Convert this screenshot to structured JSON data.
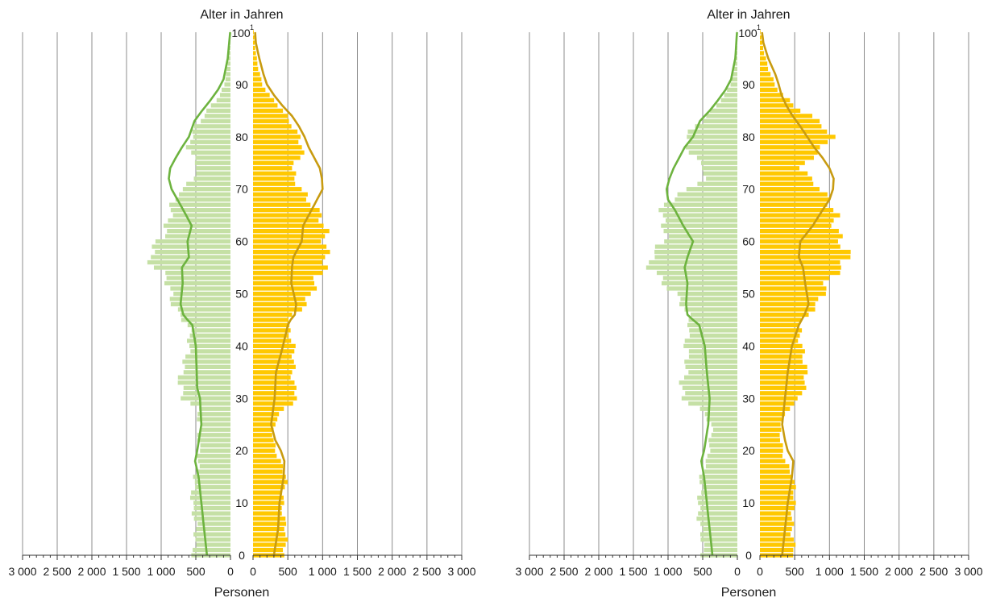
{
  "chart_data": [
    {
      "type": "population-pyramid",
      "title_top": "Alter in Jahren",
      "xlabel": "Personen",
      "y_ticks": [
        0,
        10,
        20,
        30,
        40,
        50,
        60,
        70,
        80,
        90,
        100
      ],
      "y_top_label": "100",
      "y_top_footnote": "1",
      "x_ticks_left": [
        "3 000",
        "2 500",
        "2 000",
        "1 500",
        "1 000",
        "500",
        "0"
      ],
      "x_ticks_right": [
        "0",
        "500",
        "1 000",
        "1 500",
        "2 000",
        "2 500",
        "3 000"
      ],
      "xlim": [
        0,
        3000
      ],
      "ylim": [
        0,
        100
      ],
      "colors": {
        "male_bar": "#c5e0a5",
        "female_bar": "#ffc800",
        "male_line": "#6db33f",
        "female_line": "#c89b10"
      },
      "male_bar_keys": [
        [
          0,
          520
        ],
        [
          5,
          520
        ],
        [
          10,
          540
        ],
        [
          15,
          520
        ],
        [
          18,
          480
        ],
        [
          20,
          450
        ],
        [
          25,
          440
        ],
        [
          28,
          500
        ],
        [
          30,
          700
        ],
        [
          33,
          720
        ],
        [
          36,
          660
        ],
        [
          40,
          620
        ],
        [
          44,
          600
        ],
        [
          46,
          720
        ],
        [
          48,
          800
        ],
        [
          50,
          880
        ],
        [
          53,
          960
        ],
        [
          55,
          1100
        ],
        [
          57,
          1150
        ],
        [
          59,
          1050
        ],
        [
          62,
          950
        ],
        [
          65,
          920
        ],
        [
          67,
          840
        ],
        [
          69,
          760
        ],
        [
          70,
          640
        ],
        [
          72,
          540
        ],
        [
          74,
          480
        ],
        [
          76,
          560
        ],
        [
          78,
          620
        ],
        [
          80,
          560
        ],
        [
          82,
          480
        ],
        [
          84,
          380
        ],
        [
          86,
          280
        ],
        [
          88,
          160
        ],
        [
          90,
          90
        ],
        [
          93,
          50
        ],
        [
          96,
          20
        ],
        [
          100,
          5
        ]
      ],
      "female_bar_keys": [
        [
          0,
          450
        ],
        [
          5,
          460
        ],
        [
          10,
          440
        ],
        [
          15,
          460
        ],
        [
          18,
          380
        ],
        [
          20,
          340
        ],
        [
          22,
          300
        ],
        [
          25,
          300
        ],
        [
          28,
          420
        ],
        [
          30,
          650
        ],
        [
          33,
          600
        ],
        [
          36,
          580
        ],
        [
          40,
          560
        ],
        [
          44,
          520
        ],
        [
          46,
          600
        ],
        [
          48,
          760
        ],
        [
          50,
          800
        ],
        [
          53,
          900
        ],
        [
          55,
          1050
        ],
        [
          57,
          1120
        ],
        [
          59,
          1050
        ],
        [
          62,
          1000
        ],
        [
          65,
          950
        ],
        [
          67,
          880
        ],
        [
          69,
          780
        ],
        [
          70,
          700
        ],
        [
          72,
          600
        ],
        [
          74,
          540
        ],
        [
          76,
          650
        ],
        [
          78,
          730
        ],
        [
          80,
          680
        ],
        [
          82,
          600
        ],
        [
          84,
          470
        ],
        [
          86,
          360
        ],
        [
          88,
          220
        ],
        [
          90,
          140
        ],
        [
          93,
          80
        ],
        [
          96,
          40
        ],
        [
          100,
          10
        ]
      ],
      "male_line_keys": [
        [
          0,
          340
        ],
        [
          5,
          380
        ],
        [
          10,
          420
        ],
        [
          15,
          460
        ],
        [
          18,
          510
        ],
        [
          20,
          480
        ],
        [
          25,
          420
        ],
        [
          30,
          440
        ],
        [
          32,
          480
        ],
        [
          40,
          500
        ],
        [
          44,
          550
        ],
        [
          45,
          620
        ],
        [
          46,
          680
        ],
        [
          48,
          720
        ],
        [
          52,
          690
        ],
        [
          55,
          700
        ],
        [
          57,
          600
        ],
        [
          60,
          620
        ],
        [
          63,
          560
        ],
        [
          66,
          680
        ],
        [
          70,
          850
        ],
        [
          72,
          890
        ],
        [
          74,
          870
        ],
        [
          76,
          790
        ],
        [
          78,
          700
        ],
        [
          80,
          600
        ],
        [
          83,
          520
        ],
        [
          85,
          410
        ],
        [
          87,
          290
        ],
        [
          89,
          180
        ],
        [
          91,
          100
        ],
        [
          95,
          40
        ],
        [
          100,
          5
        ]
      ],
      "female_line_keys": [
        [
          0,
          300
        ],
        [
          5,
          360
        ],
        [
          10,
          380
        ],
        [
          15,
          440
        ],
        [
          18,
          450
        ],
        [
          20,
          400
        ],
        [
          22,
          320
        ],
        [
          25,
          260
        ],
        [
          30,
          310
        ],
        [
          35,
          330
        ],
        [
          40,
          430
        ],
        [
          44,
          500
        ],
        [
          45,
          540
        ],
        [
          46,
          600
        ],
        [
          48,
          620
        ],
        [
          52,
          550
        ],
        [
          55,
          560
        ],
        [
          57,
          580
        ],
        [
          60,
          700
        ],
        [
          63,
          720
        ],
        [
          66,
          840
        ],
        [
          68,
          920
        ],
        [
          70,
          1000
        ],
        [
          72,
          990
        ],
        [
          74,
          960
        ],
        [
          76,
          880
        ],
        [
          78,
          800
        ],
        [
          80,
          740
        ],
        [
          82,
          660
        ],
        [
          84,
          560
        ],
        [
          86,
          420
        ],
        [
          88,
          300
        ],
        [
          90,
          200
        ],
        [
          92,
          150
        ],
        [
          95,
          90
        ],
        [
          98,
          40
        ],
        [
          100,
          30
        ]
      ]
    },
    {
      "type": "population-pyramid",
      "title_top": "Alter in Jahren",
      "xlabel": "Personen",
      "y_ticks": [
        0,
        10,
        20,
        30,
        40,
        50,
        60,
        70,
        80,
        90,
        100
      ],
      "y_top_label": "100",
      "y_top_footnote": "1",
      "x_ticks_left": [
        "3 000",
        "2 500",
        "2 000",
        "1 500",
        "1 000",
        "500",
        "0"
      ],
      "x_ticks_right": [
        "0",
        "500",
        "1 000",
        "1 500",
        "2 000",
        "2 500",
        "3 000"
      ],
      "xlim": [
        0,
        3000
      ],
      "ylim": [
        0,
        100
      ],
      "colors": {
        "male_bar": "#c5e0a5",
        "female_bar": "#ffc800",
        "male_line": "#6db33f",
        "female_line": "#c89b10"
      },
      "male_bar_keys": [
        [
          0,
          520
        ],
        [
          5,
          520
        ],
        [
          10,
          560
        ],
        [
          15,
          540
        ],
        [
          18,
          420
        ],
        [
          20,
          400
        ],
        [
          25,
          380
        ],
        [
          28,
          560
        ],
        [
          30,
          760
        ],
        [
          33,
          780
        ],
        [
          36,
          760
        ],
        [
          40,
          740
        ],
        [
          44,
          660
        ],
        [
          46,
          720
        ],
        [
          48,
          820
        ],
        [
          50,
          940
        ],
        [
          53,
          1100
        ],
        [
          55,
          1200
        ],
        [
          57,
          1250
        ],
        [
          59,
          1150
        ],
        [
          62,
          1060
        ],
        [
          65,
          1080
        ],
        [
          67,
          1000
        ],
        [
          69,
          860
        ],
        [
          70,
          700
        ],
        [
          72,
          500
        ],
        [
          74,
          500
        ],
        [
          76,
          600
        ],
        [
          78,
          700
        ],
        [
          80,
          720
        ],
        [
          82,
          620
        ],
        [
          84,
          460
        ],
        [
          86,
          320
        ],
        [
          88,
          180
        ],
        [
          90,
          100
        ],
        [
          93,
          50
        ],
        [
          96,
          20
        ],
        [
          100,
          5
        ]
      ],
      "female_bar_keys": [
        [
          0,
          480
        ],
        [
          5,
          480
        ],
        [
          10,
          480
        ],
        [
          15,
          480
        ],
        [
          18,
          380
        ],
        [
          20,
          330
        ],
        [
          22,
          290
        ],
        [
          25,
          280
        ],
        [
          28,
          420
        ],
        [
          30,
          600
        ],
        [
          33,
          650
        ],
        [
          36,
          630
        ],
        [
          40,
          620
        ],
        [
          44,
          570
        ],
        [
          46,
          660
        ],
        [
          48,
          800
        ],
        [
          50,
          900
        ],
        [
          53,
          1050
        ],
        [
          55,
          1200
        ],
        [
          57,
          1250
        ],
        [
          59,
          1150
        ],
        [
          62,
          1100
        ],
        [
          65,
          1130
        ],
        [
          67,
          1050
        ],
        [
          69,
          900
        ],
        [
          70,
          850
        ],
        [
          72,
          700
        ],
        [
          74,
          600
        ],
        [
          76,
          760
        ],
        [
          78,
          950
        ],
        [
          80,
          1020
        ],
        [
          82,
          900
        ],
        [
          84,
          700
        ],
        [
          86,
          500
        ],
        [
          88,
          340
        ],
        [
          90,
          220
        ],
        [
          93,
          120
        ],
        [
          96,
          60
        ],
        [
          100,
          10
        ]
      ],
      "male_line_keys": [
        [
          0,
          360
        ],
        [
          5,
          400
        ],
        [
          10,
          440
        ],
        [
          15,
          480
        ],
        [
          18,
          520
        ],
        [
          20,
          480
        ],
        [
          25,
          420
        ],
        [
          30,
          400
        ],
        [
          35,
          440
        ],
        [
          40,
          470
        ],
        [
          44,
          550
        ],
        [
          45,
          640
        ],
        [
          46,
          720
        ],
        [
          48,
          740
        ],
        [
          52,
          720
        ],
        [
          55,
          760
        ],
        [
          57,
          720
        ],
        [
          60,
          640
        ],
        [
          63,
          780
        ],
        [
          66,
          900
        ],
        [
          68,
          1000
        ],
        [
          70,
          1020
        ],
        [
          72,
          980
        ],
        [
          74,
          920
        ],
        [
          76,
          840
        ],
        [
          78,
          760
        ],
        [
          80,
          640
        ],
        [
          83,
          540
        ],
        [
          85,
          400
        ],
        [
          87,
          280
        ],
        [
          89,
          170
        ],
        [
          91,
          90
        ],
        [
          95,
          30
        ],
        [
          100,
          5
        ]
      ],
      "female_line_keys": [
        [
          0,
          320
        ],
        [
          5,
          360
        ],
        [
          10,
          400
        ],
        [
          15,
          460
        ],
        [
          18,
          480
        ],
        [
          20,
          400
        ],
        [
          22,
          360
        ],
        [
          25,
          320
        ],
        [
          30,
          360
        ],
        [
          35,
          400
        ],
        [
          40,
          460
        ],
        [
          44,
          560
        ],
        [
          45,
          600
        ],
        [
          46,
          640
        ],
        [
          48,
          700
        ],
        [
          52,
          650
        ],
        [
          55,
          620
        ],
        [
          57,
          560
        ],
        [
          60,
          580
        ],
        [
          63,
          760
        ],
        [
          66,
          900
        ],
        [
          68,
          1000
        ],
        [
          70,
          1050
        ],
        [
          72,
          1060
        ],
        [
          74,
          1000
        ],
        [
          76,
          900
        ],
        [
          78,
          780
        ],
        [
          80,
          680
        ],
        [
          82,
          580
        ],
        [
          84,
          470
        ],
        [
          86,
          380
        ],
        [
          88,
          310
        ],
        [
          90,
          270
        ],
        [
          92,
          220
        ],
        [
          95,
          120
        ],
        [
          98,
          50
        ],
        [
          100,
          30
        ]
      ]
    }
  ]
}
